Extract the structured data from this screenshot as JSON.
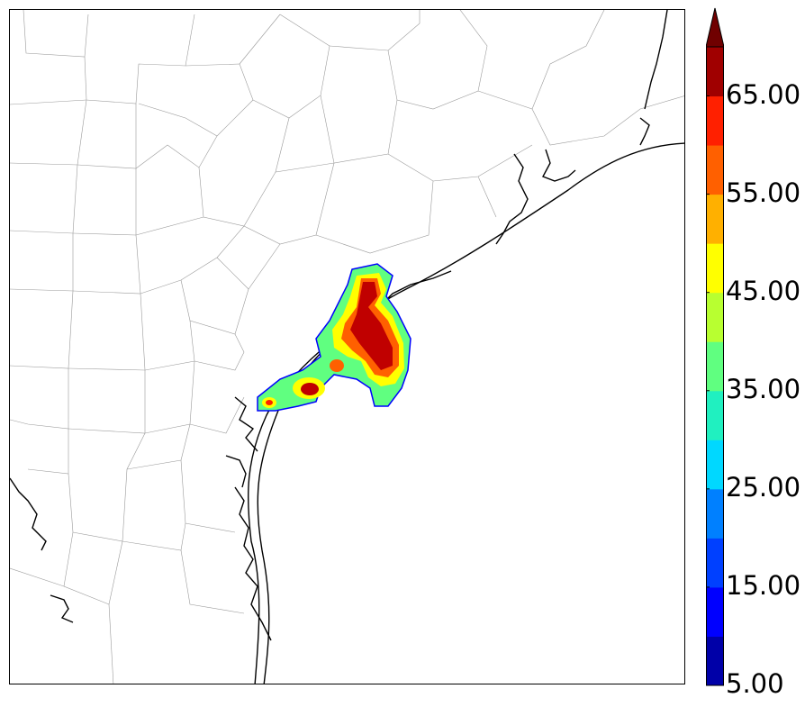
{
  "colorbar": {
    "tick_labels": [
      "5.00",
      "15.00",
      "25.00",
      "35.00",
      "45.00",
      "55.00",
      "65.00"
    ],
    "levels": [
      5,
      10,
      15,
      20,
      25,
      30,
      35,
      40,
      45,
      50,
      55,
      60,
      65,
      70
    ],
    "extend": "max",
    "colors": [
      "#0000a8",
      "#0000ff",
      "#0040ff",
      "#0080ff",
      "#00d8ff",
      "#20f0c0",
      "#60ff80",
      "#b8ff30",
      "#ffff00",
      "#ffb000",
      "#ff6000",
      "#ff2000",
      "#a00000",
      "#700000"
    ]
  },
  "map": {
    "features": [
      "county-boundaries",
      "coastline",
      "bays",
      "precipitation-contours"
    ],
    "contour_colors": {
      "outline": "#0000ff",
      "low": "#60ff80",
      "mid": "#ffff00",
      "high": "#ff6000",
      "peak": "#c00000"
    }
  }
}
